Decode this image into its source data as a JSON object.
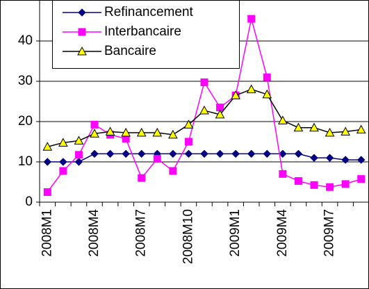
{
  "chart_data": {
    "type": "line",
    "categories": [
      "2008M1",
      null,
      null,
      "2008M4",
      null,
      null,
      "2008M7",
      null,
      null,
      "2008M10",
      null,
      null,
      "2009M1",
      null,
      null,
      "2009M4",
      null,
      null,
      "2009M7",
      null,
      null
    ],
    "series": [
      {
        "name": "Refinancement",
        "color": "#000080",
        "marker": "diamond",
        "values": [
          10,
          10,
          10,
          12,
          12,
          12,
          12,
          12,
          12,
          12,
          12,
          12,
          12,
          12,
          12,
          12,
          12,
          11,
          11,
          10.5,
          10.5
        ]
      },
      {
        "name": "Interbancaire",
        "color": "#ff00ff",
        "marker": "square",
        "values": [
          2.5,
          7.75,
          11.75,
          19.25,
          16.75,
          15.75,
          6,
          10.75,
          7.75,
          15,
          29.75,
          23.5,
          26.5,
          45.5,
          31,
          7,
          5.25,
          4.25,
          3.75,
          4.5,
          5.75
        ]
      },
      {
        "name": "Bancaire",
        "color": "#000000",
        "marker": "triangle",
        "values": [
          13.75,
          14.75,
          15.25,
          17,
          17.5,
          17.25,
          17.25,
          17.25,
          16.75,
          19.25,
          22.75,
          21.75,
          26.5,
          28,
          26.75,
          20.25,
          18.5,
          18.5,
          17.25,
          17.5,
          18
        ]
      }
    ],
    "ylim": [
      0,
      50
    ],
    "yticks": [
      0,
      10,
      20,
      30,
      40
    ],
    "grid": true,
    "legend": "top-left"
  }
}
